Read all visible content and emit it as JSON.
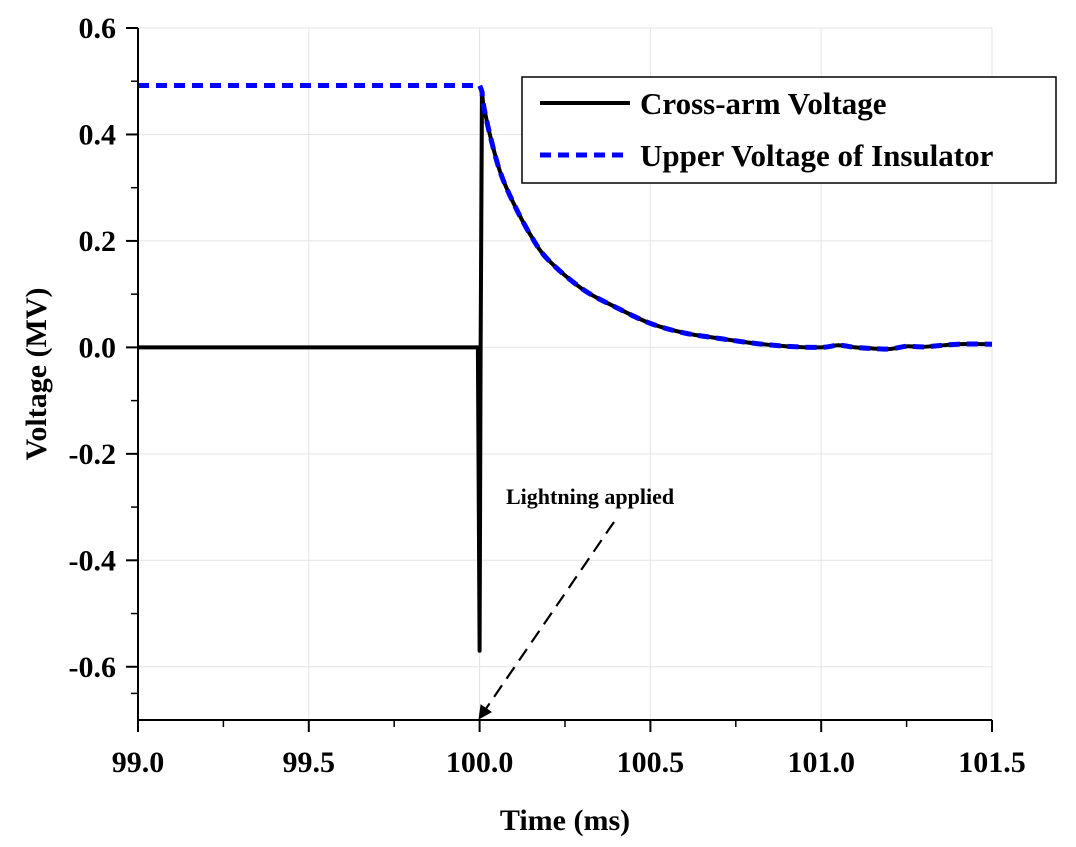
{
  "chart_data": {
    "type": "line",
    "title": "",
    "xlabel": "Time (ms)",
    "ylabel": "Voltage (MV)",
    "xlim": [
      99.0,
      101.5
    ],
    "ylim": [
      -0.7,
      0.6
    ],
    "xticks": [
      99.0,
      99.5,
      100.0,
      100.5,
      101.0,
      101.5
    ],
    "xtick_labels": [
      "99.0",
      "99.5",
      "100.0",
      "100.5",
      "101.0",
      "101.5"
    ],
    "yticks": [
      0.6,
      0.4,
      0.2,
      0.0,
      -0.2,
      -0.4,
      -0.6
    ],
    "ytick_labels": [
      "0.6",
      "0.4",
      "0.2",
      "0.0",
      "-0.2",
      "-0.4",
      "-0.6"
    ],
    "grid": true,
    "legend_position": "top-right",
    "series": [
      {
        "name": "Cross-arm Voltage",
        "color": "#000000",
        "style": "solid",
        "x": [
          99.0,
          99.995,
          100.0,
          100.003,
          100.007,
          100.01,
          100.03,
          100.06,
          100.1,
          100.15,
          100.2,
          100.3,
          100.4,
          100.5,
          100.6,
          100.7,
          100.8,
          100.9,
          101.0,
          101.05,
          101.1,
          101.15,
          101.2,
          101.25,
          101.3,
          101.4,
          101.5
        ],
        "y": [
          0.0,
          0.0,
          -0.57,
          0.0,
          0.48,
          0.46,
          0.4,
          0.33,
          0.27,
          0.21,
          0.165,
          0.11,
          0.075,
          0.045,
          0.027,
          0.017,
          0.008,
          0.002,
          0.0,
          0.004,
          0.0,
          -0.002,
          -0.003,
          0.002,
          0.001,
          0.006,
          0.006
        ]
      },
      {
        "name": "Upper Voltage of Insulator",
        "color": "#0000ff",
        "style": "dashed",
        "x": [
          99.0,
          100.0,
          100.007,
          100.01,
          100.03,
          100.06,
          100.1,
          100.15,
          100.2,
          100.3,
          100.4,
          100.5,
          100.6,
          100.7,
          100.8,
          100.9,
          101.0,
          101.05,
          101.1,
          101.15,
          101.2,
          101.25,
          101.3,
          101.4,
          101.5
        ],
        "y": [
          0.492,
          0.492,
          0.48,
          0.46,
          0.4,
          0.33,
          0.27,
          0.21,
          0.165,
          0.11,
          0.075,
          0.045,
          0.027,
          0.017,
          0.008,
          0.002,
          0.0,
          0.004,
          0.0,
          -0.002,
          -0.003,
          0.002,
          0.001,
          0.006,
          0.006
        ]
      }
    ],
    "annotations": [
      {
        "text": "Lightning applied",
        "arrow_to": {
          "x": 100.0,
          "y": -0.7
        }
      }
    ]
  }
}
